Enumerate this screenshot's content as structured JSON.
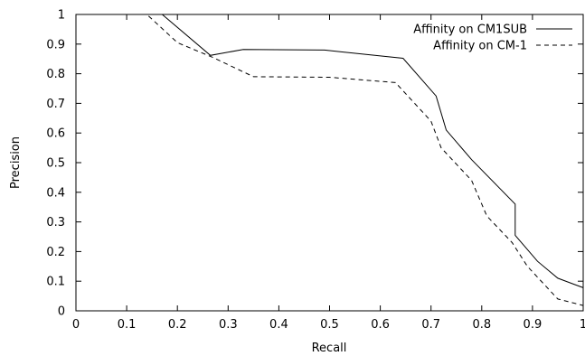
{
  "chart_data": {
    "type": "line",
    "xlabel": "Recall",
    "ylabel": "Precision",
    "xlim": [
      0,
      1
    ],
    "ylim": [
      0,
      1
    ],
    "x_ticks": [
      "0",
      "0.1",
      "0.2",
      "0.3",
      "0.4",
      "0.5",
      "0.6",
      "0.7",
      "0.8",
      "0.9",
      "1"
    ],
    "y_ticks": [
      "0",
      "0.1",
      "0.2",
      "0.3",
      "0.4",
      "0.5",
      "0.6",
      "0.7",
      "0.8",
      "0.9",
      "1"
    ],
    "grid": false,
    "legend_position": "top-right",
    "series": [
      {
        "name": "Affinity on CM1SUB",
        "style": "solid",
        "color": "#000000",
        "points": [
          [
            0.0,
            1.0
          ],
          [
            0.17,
            1.0
          ],
          [
            0.265,
            0.862
          ],
          [
            0.33,
            0.882
          ],
          [
            0.49,
            0.88
          ],
          [
            0.645,
            0.852
          ],
          [
            0.71,
            0.725
          ],
          [
            0.73,
            0.61
          ],
          [
            0.78,
            0.51
          ],
          [
            0.866,
            0.36
          ],
          [
            0.866,
            0.255
          ],
          [
            0.91,
            0.167
          ],
          [
            0.95,
            0.11
          ],
          [
            1.0,
            0.078
          ]
        ]
      },
      {
        "name": "Affinity on CM-1",
        "style": "dashed",
        "color": "#000000",
        "points": [
          [
            0.0,
            1.0
          ],
          [
            0.14,
            1.0
          ],
          [
            0.2,
            0.905
          ],
          [
            0.27,
            0.855
          ],
          [
            0.35,
            0.79
          ],
          [
            0.5,
            0.788
          ],
          [
            0.63,
            0.77
          ],
          [
            0.7,
            0.64
          ],
          [
            0.72,
            0.55
          ],
          [
            0.78,
            0.44
          ],
          [
            0.81,
            0.32
          ],
          [
            0.86,
            0.23
          ],
          [
            0.89,
            0.15
          ],
          [
            0.95,
            0.04
          ],
          [
            1.0,
            0.018
          ]
        ]
      }
    ]
  }
}
